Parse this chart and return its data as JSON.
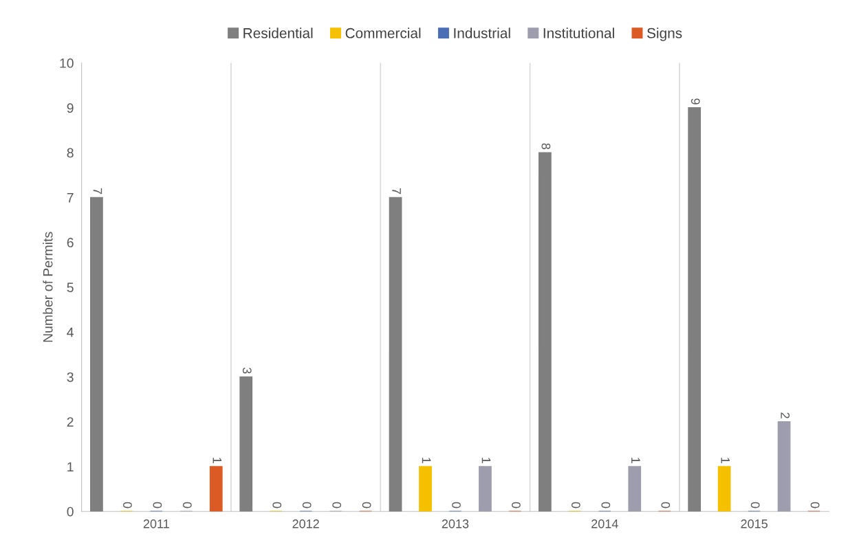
{
  "chart_data": {
    "type": "bar",
    "ylabel": "Number of Permits",
    "categories": [
      "2011",
      "2012",
      "2013",
      "2014",
      "2015"
    ],
    "series": [
      {
        "name": "Residential",
        "color": "#7f7f7f",
        "values": [
          7,
          3,
          7,
          8,
          9
        ]
      },
      {
        "name": "Commercial",
        "color": "#f5c000",
        "values": [
          0,
          0,
          1,
          0,
          1
        ]
      },
      {
        "name": "Industrial",
        "color": "#4a6fb5",
        "values": [
          0,
          0,
          0,
          0,
          0
        ]
      },
      {
        "name": "Institutional",
        "color": "#9d9dae",
        "values": [
          0,
          0,
          1,
          1,
          2
        ]
      },
      {
        "name": "Signs",
        "color": "#dc5a24",
        "values": [
          1,
          0,
          0,
          0,
          0
        ]
      }
    ],
    "ylim": [
      0,
      10
    ],
    "yticks": [
      0,
      1,
      2,
      3,
      4,
      5,
      6,
      7,
      8,
      9,
      10
    ],
    "grid": "x",
    "legend": "top",
    "data_labels": true
  }
}
